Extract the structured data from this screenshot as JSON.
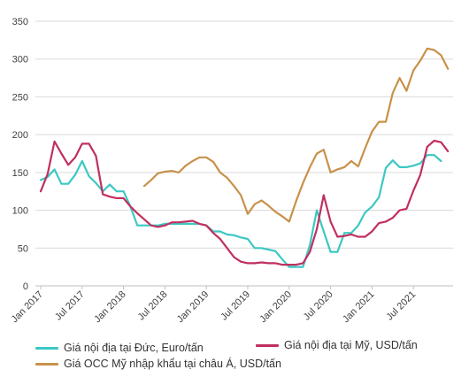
{
  "chart_data": {
    "type": "line",
    "title": "",
    "xlabel": "",
    "ylabel": "",
    "ylim": [
      0,
      350
    ],
    "yticks": [
      0,
      50,
      100,
      150,
      200,
      250,
      300,
      350
    ],
    "xtick_labels": [
      "Jan 2017",
      "Jul 2017",
      "Jan 2018",
      "Jul 2018",
      "Jan 2019",
      "Jul 2019",
      "Jan 2020",
      "Jul 2020",
      "Jan 2021",
      "Jul 2021"
    ],
    "x_start": "2017-01",
    "legend_position": "bottom",
    "grid": "horizontal",
    "series": [
      {
        "name": "Giá nội địa tại Đức, Euro/tấn",
        "color": "#3cc8c4",
        "values": [
          140,
          144,
          154,
          135,
          135,
          147,
          165,
          145,
          136,
          125,
          134,
          125,
          125,
          105,
          80,
          80,
          80,
          80,
          82,
          82,
          82,
          82,
          82,
          82,
          80,
          72,
          72,
          68,
          67,
          64,
          62,
          50,
          50,
          48,
          46,
          35,
          25,
          25,
          25,
          54,
          100,
          72,
          45,
          45,
          70,
          70,
          80,
          97,
          105,
          117,
          156,
          166,
          157,
          157,
          159,
          162,
          173,
          173,
          165
        ]
      },
      {
        "name": "Giá nội địa tại Mỹ, USD/tấn",
        "color": "#c0305f",
        "values": [
          125,
          148,
          191,
          175,
          160,
          170,
          188,
          188,
          172,
          121,
          118,
          116,
          116,
          105,
          96,
          88,
          80,
          78,
          80,
          84,
          84,
          85,
          86,
          82,
          80,
          70,
          62,
          50,
          38,
          32,
          30,
          30,
          31,
          30,
          30,
          28,
          28,
          28,
          30,
          45,
          75,
          120,
          85,
          65,
          66,
          68,
          65,
          65,
          72,
          83,
          85,
          90,
          100,
          102,
          126,
          147,
          184,
          192,
          190,
          178
        ]
      },
      {
        "name": "Giá OCC Mỹ nhập khẩu tại châu Á, USD/tấn",
        "color": "#c8914a",
        "start_index": 15,
        "values": [
          132,
          140,
          149,
          151,
          152,
          150,
          159,
          165,
          170,
          170,
          164,
          150,
          143,
          132,
          120,
          95,
          108,
          113,
          106,
          98,
          92,
          85,
          112,
          136,
          157,
          175,
          180,
          150,
          154,
          157,
          165,
          158,
          182,
          204,
          217,
          217,
          255,
          275,
          258,
          285,
          298,
          314,
          312,
          305,
          287
        ]
      }
    ]
  }
}
